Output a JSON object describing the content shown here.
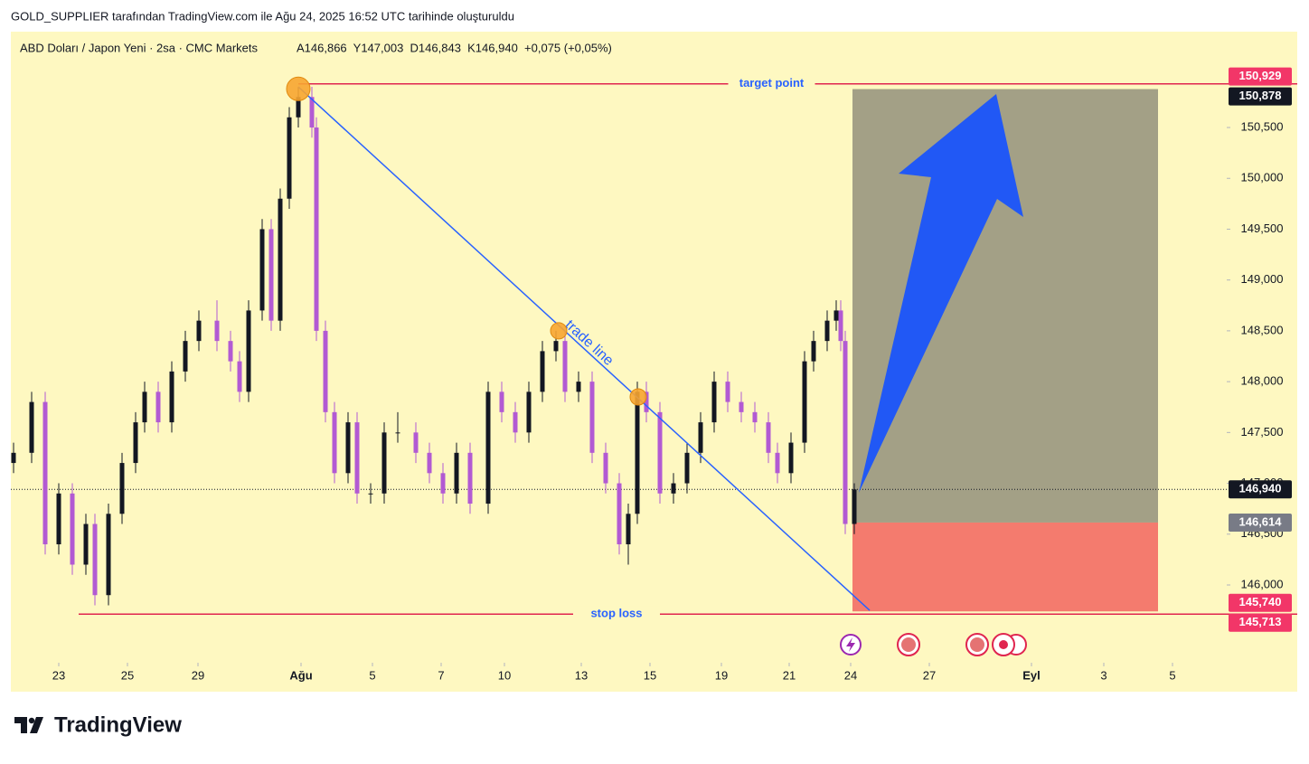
{
  "header": {
    "caption": "GOLD_SUPPLIER tarafından TradingView.com ile Ağu 24, 2025 16:52 UTC tarihinde oluşturuldu"
  },
  "footer": {
    "brand": "TradingView"
  },
  "chart_data": {
    "type": "candlestick",
    "title": "ABD Doları / Japon Yeni · 2sa · CMC Markets",
    "ohlc_summary": "A146,866  Y147,003  D146,843  K146,940  +0,075 (+0,05%)",
    "up_color": "#131722",
    "down_color": "#b25ad3",
    "x": [
      0.3,
      2.3,
      3.8,
      5.3,
      6.8,
      8.3,
      9.3,
      10.8,
      12.3,
      13.8,
      14.8,
      16.3,
      17.8,
      19.3,
      20.8,
      22.8,
      24.3,
      25.3,
      26.3,
      27.8,
      28.8,
      29.8,
      30.8,
      31.8,
      33.3,
      33.8,
      34.8,
      35.8,
      37.3,
      38.3,
      39.8,
      41.3,
      42.8,
      44.8,
      46.3,
      47.8,
      49.3,
      50.8,
      52.8,
      54.3,
      55.8,
      57.3,
      58.8,
      60.3,
      61.3,
      62.8,
      64.3,
      65.8,
      67.3,
      68.3,
      69.3,
      70.3,
      71.8,
      73.3,
      74.8,
      76.3,
      77.8,
      79.3,
      80.8,
      82.3,
      83.8,
      84.8,
      86.3,
      87.8,
      88.8,
      90.3,
      91.3,
      91.8,
      92.3,
      93.3
    ],
    "open": [
      147.2,
      147.3,
      147.8,
      146.4,
      146.9,
      146.2,
      146.6,
      145.9,
      146.7,
      147.2,
      147.6,
      147.9,
      147.6,
      148.1,
      148.4,
      148.6,
      148.4,
      148.2,
      147.9,
      148.7,
      149.5,
      148.6,
      149.8,
      150.6,
      150.8,
      150.5,
      148.5,
      147.7,
      147.1,
      147.6,
      146.9,
      146.9,
      147.5,
      147.5,
      147.3,
      147.1,
      146.9,
      147.3,
      146.8,
      147.9,
      147.7,
      147.5,
      147.9,
      148.3,
      148.4,
      147.9,
      148.0,
      147.3,
      147.0,
      146.4,
      146.7,
      147.9,
      147.7,
      146.9,
      147.0,
      147.3,
      147.6,
      148.0,
      147.8,
      147.7,
      147.6,
      147.3,
      147.1,
      147.4,
      148.2,
      148.4,
      148.6,
      148.7,
      148.4,
      146.6
    ],
    "high": [
      147.4,
      147.9,
      147.9,
      147.0,
      147.0,
      146.7,
      146.7,
      146.8,
      147.3,
      147.7,
      148.0,
      148.0,
      148.2,
      148.5,
      148.7,
      148.8,
      148.5,
      148.3,
      148.8,
      149.6,
      149.6,
      149.9,
      150.7,
      150.9,
      150.9,
      150.6,
      148.6,
      147.8,
      147.7,
      147.7,
      147.0,
      147.6,
      147.7,
      147.6,
      147.4,
      147.2,
      147.4,
      147.4,
      148.0,
      148.0,
      147.8,
      148.0,
      148.4,
      148.5,
      148.5,
      148.1,
      148.1,
      147.4,
      147.1,
      146.8,
      148.0,
      148.0,
      147.8,
      147.1,
      147.4,
      147.7,
      148.1,
      148.1,
      147.9,
      147.8,
      147.7,
      147.4,
      147.5,
      148.3,
      148.5,
      148.7,
      148.8,
      148.8,
      148.5,
      147.0
    ],
    "low": [
      147.1,
      147.2,
      146.3,
      146.3,
      146.1,
      146.1,
      145.8,
      145.8,
      146.6,
      147.1,
      147.5,
      147.5,
      147.5,
      148.0,
      148.3,
      148.3,
      148.1,
      147.8,
      147.8,
      148.6,
      148.5,
      148.5,
      149.7,
      150.5,
      150.4,
      148.4,
      147.6,
      147.0,
      147.0,
      146.8,
      146.8,
      146.8,
      147.4,
      147.2,
      147.0,
      146.8,
      146.8,
      146.7,
      146.7,
      147.6,
      147.4,
      147.4,
      147.8,
      148.2,
      147.8,
      147.8,
      147.2,
      146.9,
      146.3,
      146.2,
      146.6,
      147.6,
      146.8,
      146.8,
      146.9,
      147.2,
      147.5,
      147.7,
      147.6,
      147.5,
      147.2,
      147.0,
      147.0,
      147.3,
      148.1,
      148.3,
      148.5,
      148.3,
      146.5,
      146.5
    ],
    "close": [
      147.3,
      147.8,
      146.4,
      146.9,
      146.2,
      146.6,
      145.9,
      146.7,
      147.2,
      147.6,
      147.9,
      147.6,
      148.1,
      148.4,
      148.6,
      148.4,
      148.2,
      147.9,
      148.7,
      149.5,
      148.6,
      149.8,
      150.6,
      150.8,
      150.5,
      148.5,
      147.7,
      147.1,
      147.6,
      146.9,
      146.9,
      147.5,
      147.5,
      147.3,
      147.1,
      146.9,
      147.3,
      146.8,
      147.9,
      147.7,
      147.5,
      147.9,
      148.3,
      148.4,
      147.9,
      148.0,
      147.3,
      147.0,
      146.4,
      146.7,
      147.9,
      147.7,
      146.9,
      147.0,
      147.3,
      147.6,
      148.0,
      147.8,
      147.7,
      147.6,
      147.3,
      147.1,
      147.4,
      148.2,
      148.4,
      148.6,
      148.7,
      148.4,
      146.6,
      146.94
    ],
    "xlim": [
      0,
      134.5
    ],
    "ylim": [
      145.235,
      151.443
    ],
    "xticks": [
      {
        "value": 5.3,
        "label": "23"
      },
      {
        "value": 12.9,
        "label": "25"
      },
      {
        "value": 20.7,
        "label": "29"
      },
      {
        "value": 32.1,
        "label": "Ağu"
      },
      {
        "value": 40.0,
        "label": "5"
      },
      {
        "value": 47.6,
        "label": "7"
      },
      {
        "value": 54.6,
        "label": "10"
      },
      {
        "value": 63.1,
        "label": "13"
      },
      {
        "value": 70.7,
        "label": "15"
      },
      {
        "value": 78.6,
        "label": "19"
      },
      {
        "value": 86.1,
        "label": "21"
      },
      {
        "value": 92.9,
        "label": "24"
      },
      {
        "value": 101.6,
        "label": "27"
      },
      {
        "value": 112.9,
        "label": "Eyl"
      },
      {
        "value": 120.9,
        "label": "3"
      },
      {
        "value": 128.5,
        "label": "5"
      }
    ],
    "yticks": [
      {
        "value": 146.0,
        "label": "146,000"
      },
      {
        "value": 146.5,
        "label": "146,500"
      },
      {
        "value": 147.0,
        "label": "147,000"
      },
      {
        "value": 147.5,
        "label": "147,500"
      },
      {
        "value": 148.0,
        "label": "148,000"
      },
      {
        "value": 148.5,
        "label": "148,500"
      },
      {
        "value": 149.0,
        "label": "149,000"
      },
      {
        "value": 149.5,
        "label": "149,500"
      },
      {
        "value": 150.0,
        "label": "150,000"
      },
      {
        "value": 150.5,
        "label": "150,500"
      }
    ],
    "lines": [
      {
        "name": "target point",
        "value": 150.929,
        "x_start": 31.8,
        "color": "#e0254f"
      },
      {
        "name": "stop loss",
        "value": 145.713,
        "x_start": 7.5,
        "color": "#e0254f"
      }
    ],
    "position": {
      "entry": 146.614,
      "target": 150.878,
      "stop": 145.74,
      "x": [
        93.1,
        126.9
      ],
      "profit_color": "#a3a086",
      "loss_color": "#f47b6e"
    },
    "trade_line": {
      "label": "trade line",
      "x": [
        31.8,
        95.0
      ],
      "y": [
        150.9,
        145.75
      ],
      "color": "#2962ff"
    },
    "markers": {
      "x": [
        31.8,
        60.6,
        69.4
      ],
      "y": [
        150.88,
        148.5,
        147.85
      ],
      "color": "#f7a531"
    },
    "price_tags": [
      {
        "value": 150.929,
        "label": "150,929",
        "color": "#f23668"
      },
      {
        "value": 150.878,
        "label": "150,878",
        "color": "#131722"
      },
      {
        "value": 146.94,
        "label": "146,940",
        "color": "#131722",
        "line_style": "dotted"
      },
      {
        "value": 146.614,
        "label": "146,614",
        "color": "#787b86"
      },
      {
        "value": 145.74,
        "label": "145,740",
        "color": "#f23668"
      },
      {
        "value": 145.713,
        "label": "145,713",
        "color": "#f23668"
      }
    ]
  }
}
